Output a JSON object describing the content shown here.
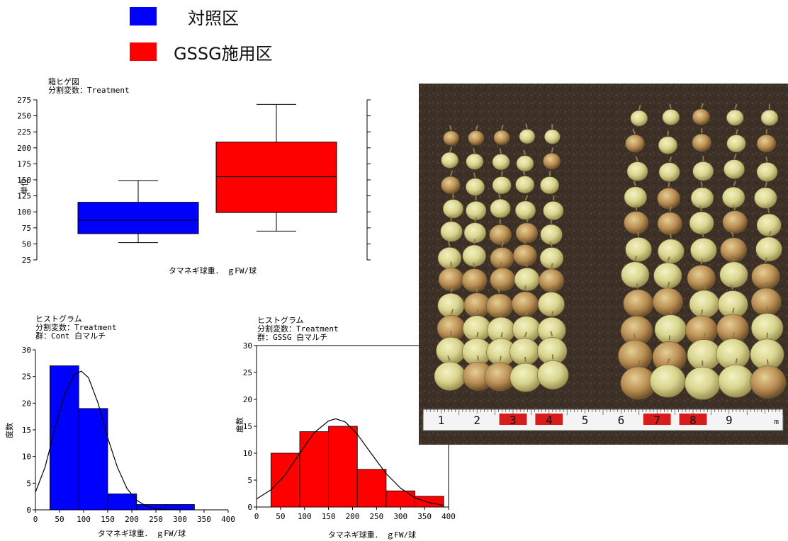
{
  "legend": {
    "items": [
      {
        "label": "対照区",
        "color": "#0000ff"
      },
      {
        "label": "GSSG施用区",
        "color": "#ff0000"
      }
    ]
  },
  "boxplot": {
    "header_line1": "箱ヒゲ図",
    "header_line2": "分割変数：Treatment"
  },
  "hist_control": {
    "header_line1": "ヒストグラム",
    "header_line2": "分割変数：Treatment",
    "header_line3": "群：Cont 白マルチ"
  },
  "hist_gssg": {
    "header_line1": "ヒストグラム",
    "header_line2": "分割変数：Treatment",
    "header_line3": "群：GSSG 白マルチ"
  },
  "photo": {
    "ruler_numbers": [
      "1",
      "2",
      "3",
      "4",
      "5",
      "6",
      "7",
      "8",
      "9"
    ],
    "ruler_unit": "m"
  },
  "chart_data": [
    {
      "type": "box",
      "ylabel": "単位",
      "xlabel": "タマネギ球重．　ｇFW/球",
      "ylim": [
        25,
        275
      ],
      "yticks": [
        25,
        50,
        75,
        100,
        125,
        150,
        175,
        200,
        225,
        250,
        275
      ],
      "series": [
        {
          "color": "#0000ff",
          "whisker_low": 52,
          "q1": 66,
          "median": 87,
          "q3": 115,
          "whisker_high": 149
        },
        {
          "color": "#ff0000",
          "whisker_low": 70,
          "q1": 99,
          "median": 155,
          "q3": 209,
          "whisker_high": 268
        }
      ]
    },
    {
      "type": "bar",
      "xlabel": "タマネギ球重．　ｇFW/球",
      "ylabel": "度数",
      "xlim": [
        0,
        400
      ],
      "ylim": [
        0,
        30
      ],
      "xticks": [
        0,
        50,
        100,
        150,
        200,
        250,
        300,
        350,
        400
      ],
      "yticks": [
        0,
        5,
        10,
        15,
        20,
        25,
        30
      ],
      "color": "#0000ff",
      "bins": [
        {
          "from": 30,
          "to": 90,
          "count": 27
        },
        {
          "from": 90,
          "to": 150,
          "count": 19
        },
        {
          "from": 150,
          "to": 210,
          "count": 3
        },
        {
          "from": 210,
          "to": 270,
          "count": 1
        },
        {
          "from": 270,
          "to": 330,
          "count": 1
        }
      ],
      "curve": [
        [
          0,
          3.3
        ],
        [
          20,
          8
        ],
        [
          40,
          15
        ],
        [
          60,
          21.5
        ],
        [
          80,
          25.3
        ],
        [
          95,
          26
        ],
        [
          110,
          24.8
        ],
        [
          130,
          20
        ],
        [
          150,
          13.5
        ],
        [
          170,
          8
        ],
        [
          190,
          4
        ],
        [
          210,
          1.8
        ],
        [
          230,
          0.7
        ],
        [
          250,
          0.2
        ],
        [
          270,
          0.05
        ],
        [
          300,
          0
        ]
      ]
    },
    {
      "type": "bar",
      "xlabel": "タマネギ球重．　ｇFW/球",
      "ylabel": "度数",
      "xlim": [
        0,
        400
      ],
      "ylim": [
        0,
        30
      ],
      "xticks": [
        0,
        50,
        100,
        150,
        200,
        250,
        300,
        350,
        400
      ],
      "yticks": [
        0,
        5,
        10,
        15,
        20,
        25,
        30
      ],
      "color": "#ff0000",
      "bins": [
        {
          "from": 30,
          "to": 90,
          "count": 10
        },
        {
          "from": 90,
          "to": 150,
          "count": 14
        },
        {
          "from": 150,
          "to": 210,
          "count": 15
        },
        {
          "from": 210,
          "to": 270,
          "count": 7
        },
        {
          "from": 270,
          "to": 330,
          "count": 3
        },
        {
          "from": 330,
          "to": 390,
          "count": 2
        }
      ],
      "curve": [
        [
          0,
          1.5
        ],
        [
          30,
          3.2
        ],
        [
          60,
          6
        ],
        [
          90,
          10
        ],
        [
          120,
          13.8
        ],
        [
          150,
          16
        ],
        [
          165,
          16.4
        ],
        [
          185,
          15.8
        ],
        [
          210,
          13.5
        ],
        [
          240,
          9.8
        ],
        [
          270,
          6.2
        ],
        [
          300,
          3.5
        ],
        [
          330,
          1.7
        ],
        [
          360,
          0.8
        ],
        [
          390,
          0.3
        ]
      ]
    }
  ]
}
